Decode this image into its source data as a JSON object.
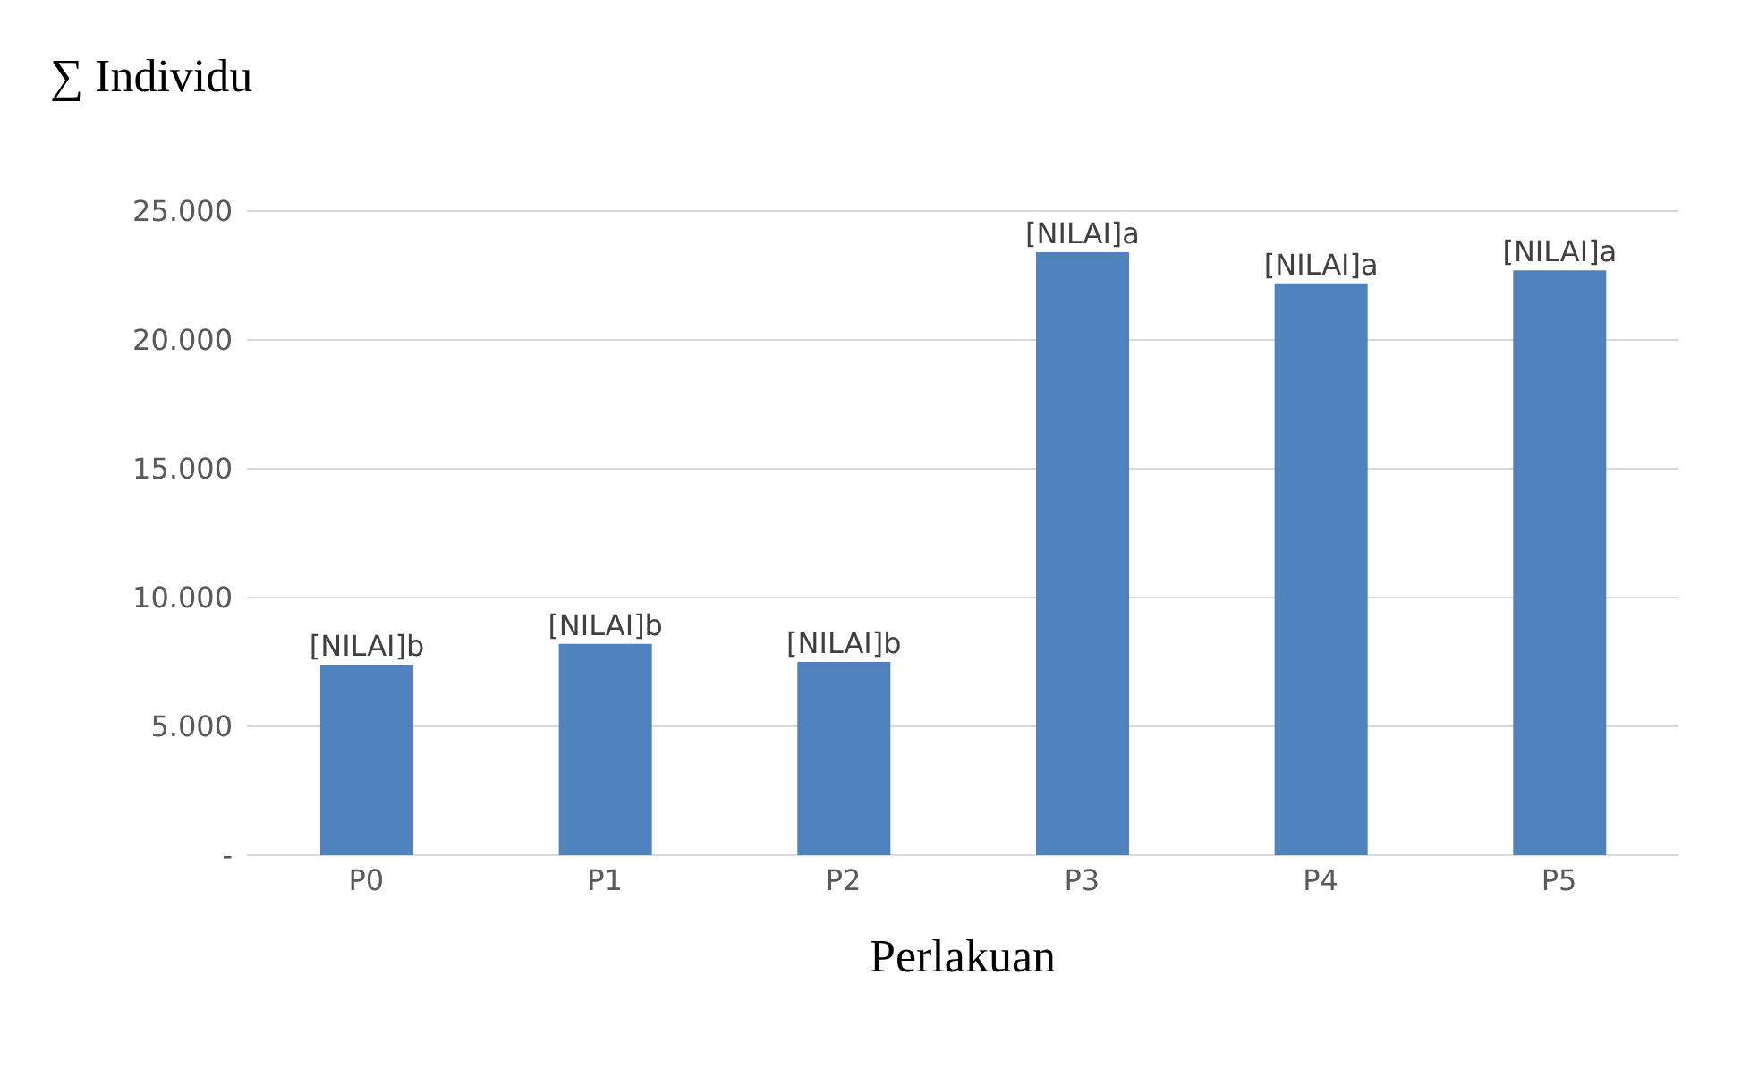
{
  "chart_data": {
    "type": "bar",
    "ylabel": "∑ Individu",
    "xlabel": "Perlakuan",
    "categories": [
      "P0",
      "P1",
      "P2",
      "P3",
      "P4",
      "P5"
    ],
    "values": [
      7400,
      8200,
      7500,
      23400,
      22200,
      22700
    ],
    "value_labels": [
      "[NILAI]b",
      "[NILAI]b",
      "[NILAI]b",
      "[NILAI]a",
      "[NILAI]a",
      "[NILAI]a"
    ],
    "color": "#4f81bd",
    "ylim": [
      0,
      25000
    ],
    "yticks": [
      {
        "value": 0,
        "label": "-"
      },
      {
        "value": 5000,
        "label": "5.000"
      },
      {
        "value": 10000,
        "label": "10.000"
      },
      {
        "value": 15000,
        "label": "15.000"
      },
      {
        "value": 20000,
        "label": "20.000"
      },
      {
        "value": 25000,
        "label": "25.000"
      }
    ],
    "grid": "y"
  }
}
